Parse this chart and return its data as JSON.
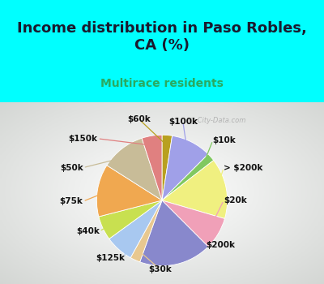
{
  "title": "Income distribution in Paso Robles,\nCA (%)",
  "subtitle": "Multirace residents",
  "title_color": "#1a1a2e",
  "subtitle_color": "#2aaa60",
  "background_color": "#00ffff",
  "chart_bg_color": "#c8e8c8",
  "watermark": "ⓘ City-Data.com",
  "labels": [
    "$60k",
    "$100k",
    "$10k",
    "> $200k",
    "$20k",
    "$200k",
    "$30k",
    "$125k",
    "$40k",
    "$75k",
    "$50k",
    "$150k"
  ],
  "values": [
    2.5,
    10,
    2,
    15,
    8,
    18,
    2.5,
    7,
    6,
    13,
    11,
    5
  ],
  "colors": [
    "#b8a020",
    "#a0a0e8",
    "#80c860",
    "#f0f080",
    "#f0a0b8",
    "#8888cc",
    "#e8c890",
    "#a8c8f0",
    "#c8e050",
    "#f0a850",
    "#c8bc98",
    "#e08080"
  ],
  "startangle": 90,
  "title_fontsize": 13,
  "subtitle_fontsize": 10,
  "label_fontsize": 7.5
}
